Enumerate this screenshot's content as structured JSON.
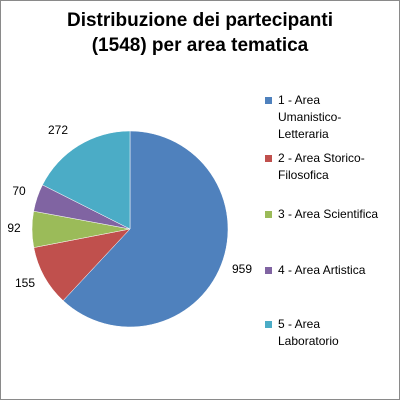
{
  "chart_data": {
    "type": "pie",
    "title_lines": [
      "Distribuzione dei partecipanti",
      "(1548) per area tematica"
    ],
    "categories": [
      "1 - Area Umanistico-Letteraria",
      "2 - Area Storico-Filosofica",
      "3 - Area Scientifica",
      "4 - Area Artistica",
      "5 - Area Laboratorio"
    ],
    "legend_lines": [
      [
        "1 - Area",
        "Umanistico-",
        "Letteraria"
      ],
      [
        "2 - Area Storico-",
        "Filosofica"
      ],
      [
        "3 - Area Scientifica"
      ],
      [
        "4 - Area Artistica"
      ],
      [
        "5 - Area",
        "Laboratorio"
      ]
    ],
    "values": [
      959,
      155,
      92,
      70,
      272
    ],
    "data_labels": [
      "959",
      "155",
      "92",
      "70",
      "272"
    ],
    "colors": [
      "#4F81BD",
      "#C0504D",
      "#9BBB59",
      "#8064A2",
      "#4BACC6"
    ],
    "legend_position": "right",
    "start_angle": "12 o'clock",
    "direction": "clockwise"
  }
}
